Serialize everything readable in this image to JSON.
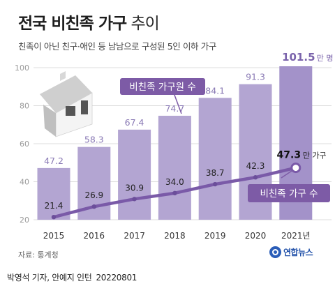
{
  "title": {
    "main": "전국 비친족 가구",
    "suffix": "추이"
  },
  "subtitle": "친족이 아닌 친구·애인 등 남남으로 구성된 5인 이하 가구",
  "source": "자료: 통계청",
  "logo": "연합뉴스",
  "byline": {
    "authors": "박영석 기자, 안예지 인턴",
    "date": "20220801"
  },
  "colors": {
    "bar": "#b3a5d2",
    "bar_last": "#a392c9",
    "line": "#7a5aa8",
    "point": "#6b4e9a",
    "label_box": "#7d5ba6",
    "grid": "#dddddd"
  },
  "chart_data": {
    "type": "bar",
    "categories": [
      "2015",
      "2016",
      "2017",
      "2018",
      "2019",
      "2020",
      "2021년"
    ],
    "ylim": [
      20,
      100
    ],
    "yticks": [
      20,
      40,
      60,
      80,
      100
    ],
    "grid": true,
    "series": [
      {
        "name": "비친족 가구원 수",
        "type": "bar",
        "unit": "만 명",
        "values": [
          47.2,
          58.3,
          67.4,
          74.7,
          84.1,
          91.3,
          101.5
        ]
      },
      {
        "name": "비친족 가구 수",
        "type": "line",
        "unit": "만 가구",
        "values": [
          21.4,
          26.9,
          30.9,
          34.0,
          38.7,
          42.3,
          47.3
        ]
      }
    ]
  }
}
